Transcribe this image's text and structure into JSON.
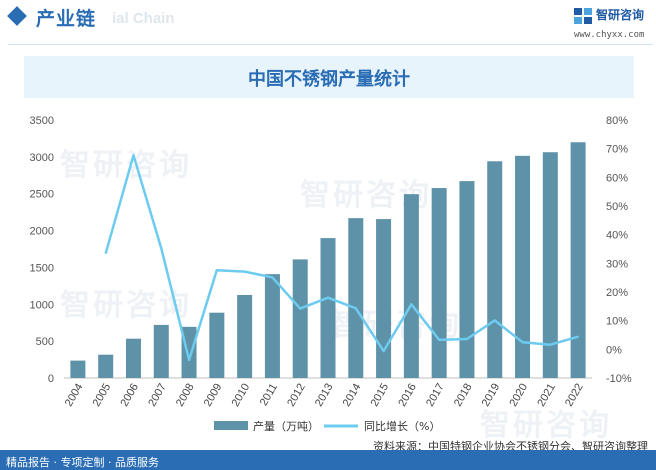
{
  "header": {
    "title": "产业链",
    "ghost_text": "ial Chain"
  },
  "logo": {
    "name": "智研咨询",
    "url": "www.chyxx.com"
  },
  "chart_data": {
    "type": "bar+line",
    "title": "中国不锈钢产量统计",
    "categories": [
      "2004",
      "2005",
      "2006",
      "2007",
      "2008",
      "2009",
      "2010",
      "2011",
      "2012",
      "2013",
      "2014",
      "2015",
      "2016",
      "2017",
      "2018",
      "2019",
      "2020",
      "2021",
      "2022"
    ],
    "series": [
      {
        "name": "产量（万吨）",
        "type": "bar",
        "axis": "left",
        "color": "#5e92a8",
        "values": [
          236,
          316,
          533,
          720,
          694,
          886,
          1126,
          1409,
          1609,
          1898,
          2169,
          2156,
          2494,
          2577,
          2671,
          2940,
          3014,
          3063,
          3198
        ]
      },
      {
        "name": "同比增长（%）",
        "type": "line",
        "axis": "right",
        "color": "#6ccbef",
        "values": [
          null,
          33.5,
          67.7,
          35.2,
          -3.7,
          27.6,
          27.1,
          25.1,
          14.2,
          18.0,
          14.3,
          -0.6,
          15.7,
          3.3,
          3.6,
          10.1,
          2.5,
          1.6,
          4.4
        ]
      }
    ],
    "y_left": {
      "ylim": [
        0,
        3500
      ],
      "ticks": [
        "0",
        "500",
        "1000",
        "1500",
        "2000",
        "2500",
        "3000",
        "3500"
      ]
    },
    "y_right": {
      "ylim": [
        -10,
        80
      ],
      "ticks": [
        "-10%",
        "0%",
        "10%",
        "20%",
        "30%",
        "40%",
        "50%",
        "60%",
        "70%",
        "80%"
      ]
    },
    "legend_position": "bottom",
    "grid": false
  },
  "footer": {
    "left": "精品报告 · 专项定制 · 品质服务",
    "source": "资料来源：中国特钢企业协会不锈钢分会、智研咨询整理"
  },
  "watermark": "智研咨询"
}
